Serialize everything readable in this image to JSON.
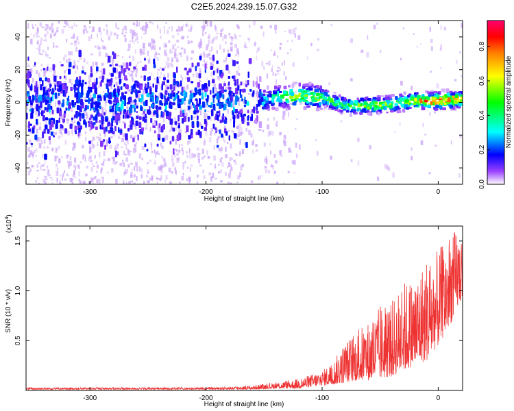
{
  "title": "C2E5.2024.239.15.07.G32",
  "chart_data": [
    {
      "type": "heatmap",
      "xlabel": "Height of straight line (km)",
      "ylabel": "Frequency (Hz)",
      "xlim": [
        -355,
        21
      ],
      "ylim": [
        -50,
        50
      ],
      "x_ticks": [
        -300,
        -200,
        -100,
        0
      ],
      "x_tick_labels": [
        "-300",
        "-200",
        "-100",
        "0"
      ],
      "y_ticks": [
        -40,
        -20,
        0,
        20,
        40
      ],
      "y_tick_labels": [
        "-40",
        "-20",
        "0",
        "20",
        "40"
      ],
      "colorbar": {
        "label": "Normalized spectral amplitude",
        "range": [
          0,
          0.95
        ],
        "ticks": [
          0.0,
          0.2,
          0.4,
          0.6,
          0.8
        ],
        "tick_labels": [
          "0.0",
          "0.2",
          "0.4",
          "0.6",
          "0.8"
        ],
        "colors": [
          "#ffffff",
          "#7a00ff",
          "#0000ff",
          "#00ffff",
          "#00ff00",
          "#ffff00",
          "#ff8000",
          "#ff0000",
          "#ff0080"
        ]
      },
      "band_center_hz": [
        [
          -355,
          0
        ],
        [
          -160,
          0
        ],
        [
          -140,
          3
        ],
        [
          -120,
          4
        ],
        [
          -100,
          3
        ],
        [
          -80,
          -2
        ],
        [
          -60,
          -2
        ],
        [
          -40,
          -1
        ],
        [
          -20,
          1
        ],
        [
          0,
          1
        ],
        [
          21,
          2
        ]
      ],
      "band_peak_amplitude": [
        [
          -355,
          0.15
        ],
        [
          -160,
          0.2
        ],
        [
          -140,
          0.4
        ],
        [
          -120,
          0.6
        ],
        [
          -100,
          0.55
        ],
        [
          -80,
          0.5
        ],
        [
          -60,
          0.6
        ],
        [
          -40,
          0.55
        ],
        [
          -20,
          0.75
        ],
        [
          0,
          0.95
        ],
        [
          21,
          0.8
        ]
      ],
      "grid": false
    },
    {
      "type": "line",
      "xlabel": "Height of straight line (km)",
      "ylabel": "SNR (10 * v/v)",
      "y_multiplier_label": "(x10",
      "y_multiplier_exp": "4",
      "y_multiplier_close": ")",
      "xlim": [
        -355,
        21
      ],
      "ylim": [
        0,
        1.65
      ],
      "x_ticks": [
        -300,
        -200,
        -100,
        0
      ],
      "x_tick_labels": [
        "-300",
        "-200",
        "-100",
        "0"
      ],
      "y_ticks": [
        0.5,
        1.0,
        1.5
      ],
      "y_tick_labels": [
        "0.5",
        "1.0",
        "1.5"
      ],
      "line_color": "#ee3333",
      "envelope": {
        "x": [
          -355,
          -200,
          -160,
          -140,
          -120,
          -100,
          -90,
          -80,
          -70,
          -60,
          -50,
          -40,
          -30,
          -20,
          -10,
          0,
          10,
          21
        ],
        "base": [
          0.01,
          0.01,
          0.01,
          0.02,
          0.02,
          0.05,
          0.06,
          0.08,
          0.1,
          0.1,
          0.12,
          0.14,
          0.2,
          0.25,
          0.3,
          0.45,
          0.65,
          0.95
        ],
        "peak": [
          0.03,
          0.03,
          0.05,
          0.08,
          0.12,
          0.2,
          0.3,
          0.5,
          0.6,
          0.7,
          0.85,
          0.9,
          1.1,
          1.15,
          1.35,
          1.4,
          1.6,
          1.62
        ]
      },
      "grid": false
    }
  ]
}
